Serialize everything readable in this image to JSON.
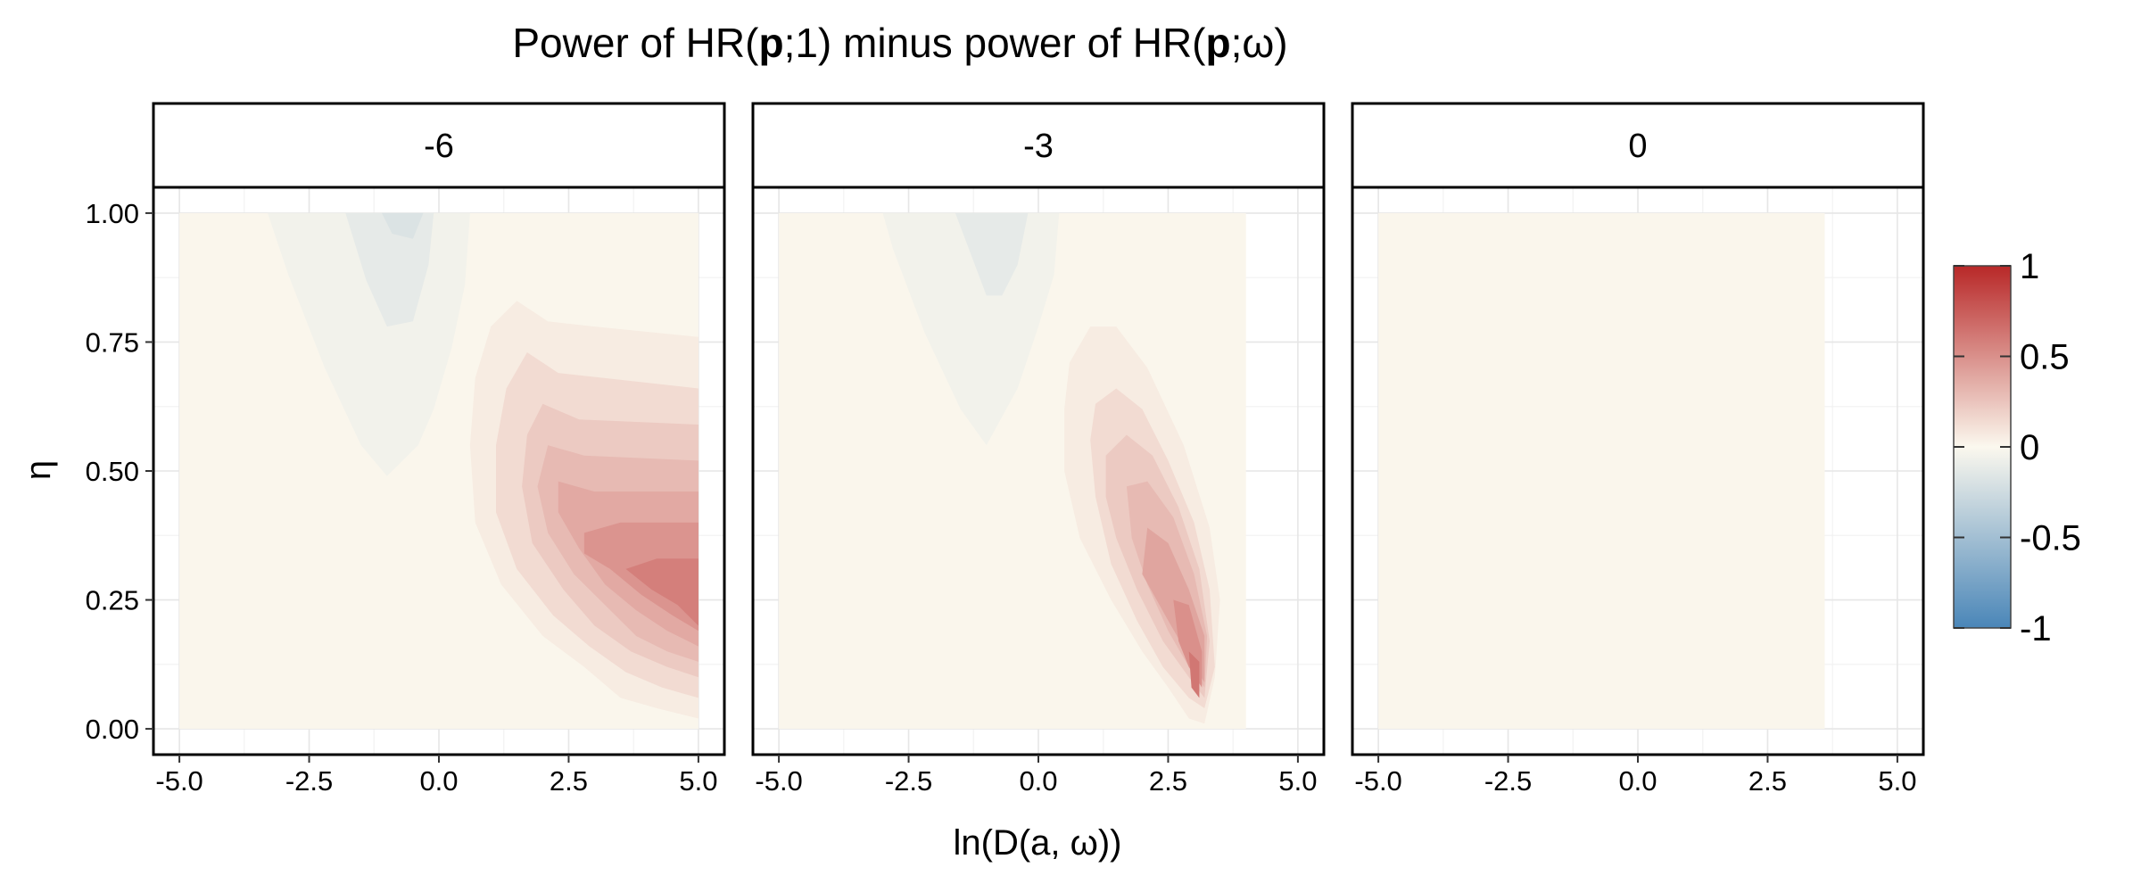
{
  "chart_data": {
    "type": "heatmap",
    "title": {
      "prefix": "Power of HR(",
      "bold1": "p",
      "mid": ";1) minus power of HR(",
      "bold2": "p",
      "suffix": ";ω)"
    },
    "xlabel": "ln(D(a, ω))",
    "ylabel": "η",
    "xlim": [
      -5.5,
      5.5
    ],
    "ylim": [
      -0.05,
      1.05
    ],
    "x_ticks": [
      "-5.0",
      "-2.5",
      "0.0",
      "2.5",
      "5.0"
    ],
    "x_tick_values": [
      -5,
      -2.5,
      0,
      2.5,
      5
    ],
    "y_ticks": [
      "0.00",
      "0.25",
      "0.50",
      "0.75",
      "1.00"
    ],
    "y_tick_values": [
      0,
      0.25,
      0.5,
      0.75,
      1
    ],
    "grid": true,
    "legend": {
      "position": "right",
      "min": -1,
      "max": 1,
      "ticks": [
        "1",
        "0.5",
        "0",
        "-0.5",
        "-1"
      ],
      "tick_values": [
        1,
        0.5,
        0,
        -0.5,
        -1
      ],
      "colors": {
        "low": "#4a86b8",
        "mid": "#fbf8ee",
        "high": "#b82828"
      }
    },
    "facets": [
      {
        "label": "-6",
        "x_extent": [
          -5,
          5
        ],
        "regions": [
          {
            "value": -0.05,
            "points": [
              [
                -3.3,
                1.0
              ],
              [
                -0.6,
                1.0
              ],
              [
                0.6,
                1.0
              ],
              [
                0.5,
                0.86
              ],
              [
                0.25,
                0.74
              ],
              [
                -0.1,
                0.62
              ],
              [
                -0.4,
                0.55
              ],
              [
                -1.0,
                0.49
              ],
              [
                -1.5,
                0.55
              ],
              [
                -2.2,
                0.7
              ],
              [
                -2.9,
                0.88
              ]
            ]
          },
          {
            "value": -0.12,
            "points": [
              [
                -1.8,
                1.0
              ],
              [
                -0.1,
                1.0
              ],
              [
                -0.2,
                0.9
              ],
              [
                -0.5,
                0.79
              ],
              [
                -1.0,
                0.78
              ],
              [
                -1.4,
                0.87
              ]
            ]
          },
          {
            "value": -0.18,
            "points": [
              [
                -1.1,
                1.0
              ],
              [
                -0.3,
                1.0
              ],
              [
                -0.5,
                0.95
              ],
              [
                -0.9,
                0.96
              ]
            ]
          },
          {
            "value": 0.06,
            "points": [
              [
                1.5,
                0.83
              ],
              [
                2.1,
                0.79
              ],
              [
                3.0,
                0.78
              ],
              [
                5.0,
                0.76
              ],
              [
                5.0,
                0.02
              ],
              [
                4.2,
                0.04
              ],
              [
                3.5,
                0.06
              ],
              [
                2.8,
                0.12
              ],
              [
                2.0,
                0.18
              ],
              [
                1.2,
                0.28
              ],
              [
                0.7,
                0.4
              ],
              [
                0.6,
                0.55
              ],
              [
                0.7,
                0.68
              ],
              [
                1.0,
                0.78
              ]
            ]
          },
          {
            "value": 0.14,
            "points": [
              [
                1.7,
                0.73
              ],
              [
                2.3,
                0.69
              ],
              [
                3.2,
                0.68
              ],
              [
                5.0,
                0.66
              ],
              [
                5.0,
                0.06
              ],
              [
                4.3,
                0.08
              ],
              [
                3.6,
                0.11
              ],
              [
                2.9,
                0.16
              ],
              [
                2.2,
                0.22
              ],
              [
                1.5,
                0.31
              ],
              [
                1.1,
                0.42
              ],
              [
                1.1,
                0.55
              ],
              [
                1.3,
                0.66
              ]
            ]
          },
          {
            "value": 0.22,
            "points": [
              [
                2.0,
                0.63
              ],
              [
                2.7,
                0.6
              ],
              [
                5.0,
                0.59
              ],
              [
                5.0,
                0.1
              ],
              [
                4.4,
                0.12
              ],
              [
                3.7,
                0.15
              ],
              [
                3.0,
                0.2
              ],
              [
                2.4,
                0.27
              ],
              [
                1.8,
                0.36
              ],
              [
                1.6,
                0.47
              ],
              [
                1.7,
                0.57
              ]
            ]
          },
          {
            "value": 0.3,
            "points": [
              [
                2.1,
                0.55
              ],
              [
                2.8,
                0.53
              ],
              [
                5.0,
                0.52
              ],
              [
                5.0,
                0.13
              ],
              [
                4.4,
                0.15
              ],
              [
                3.8,
                0.18
              ],
              [
                3.2,
                0.24
              ],
              [
                2.6,
                0.3
              ],
              [
                2.1,
                0.38
              ],
              [
                1.9,
                0.47
              ]
            ]
          },
          {
            "value": 0.38,
            "points": [
              [
                2.3,
                0.48
              ],
              [
                3.0,
                0.46
              ],
              [
                5.0,
                0.46
              ],
              [
                5.0,
                0.16
              ],
              [
                4.4,
                0.19
              ],
              [
                3.8,
                0.23
              ],
              [
                3.2,
                0.28
              ],
              [
                2.7,
                0.35
              ],
              [
                2.3,
                0.42
              ]
            ]
          },
          {
            "value": 0.48,
            "points": [
              [
                2.8,
                0.38
              ],
              [
                3.5,
                0.4
              ],
              [
                5.0,
                0.4
              ],
              [
                5.0,
                0.19
              ],
              [
                4.5,
                0.22
              ],
              [
                3.9,
                0.26
              ],
              [
                3.3,
                0.31
              ],
              [
                2.8,
                0.34
              ]
            ]
          },
          {
            "value": 0.58,
            "points": [
              [
                3.6,
                0.31
              ],
              [
                4.2,
                0.33
              ],
              [
                5.0,
                0.33
              ],
              [
                5.0,
                0.2
              ],
              [
                4.6,
                0.24
              ],
              [
                4.1,
                0.27
              ]
            ]
          }
        ]
      },
      {
        "label": "-3",
        "x_extent": [
          -5,
          4
        ],
        "regions": [
          {
            "value": -0.05,
            "points": [
              [
                -3.0,
                1.0
              ],
              [
                -1.0,
                1.0
              ],
              [
                0.4,
                1.0
              ],
              [
                0.3,
                0.88
              ],
              [
                0.0,
                0.78
              ],
              [
                -0.4,
                0.66
              ],
              [
                -1.0,
                0.55
              ],
              [
                -1.5,
                0.62
              ],
              [
                -2.2,
                0.77
              ],
              [
                -2.8,
                0.93
              ]
            ]
          },
          {
            "value": -0.12,
            "points": [
              [
                -1.6,
                1.0
              ],
              [
                -0.2,
                1.0
              ],
              [
                -0.4,
                0.9
              ],
              [
                -0.7,
                0.84
              ],
              [
                -1.0,
                0.84
              ],
              [
                -1.3,
                0.92
              ]
            ]
          },
          {
            "value": 0.06,
            "points": [
              [
                0.6,
                0.71
              ],
              [
                1.0,
                0.78
              ],
              [
                1.5,
                0.78
              ],
              [
                2.1,
                0.7
              ],
              [
                2.8,
                0.55
              ],
              [
                3.3,
                0.39
              ],
              [
                3.5,
                0.25
              ],
              [
                3.4,
                0.1
              ],
              [
                3.2,
                0.01
              ],
              [
                2.9,
                0.02
              ],
              [
                2.5,
                0.08
              ],
              [
                2.0,
                0.15
              ],
              [
                1.4,
                0.25
              ],
              [
                0.8,
                0.37
              ],
              [
                0.5,
                0.5
              ],
              [
                0.5,
                0.62
              ]
            ]
          },
          {
            "value": 0.14,
            "points": [
              [
                1.1,
                0.63
              ],
              [
                1.5,
                0.66
              ],
              [
                2.0,
                0.62
              ],
              [
                2.5,
                0.52
              ],
              [
                3.0,
                0.4
              ],
              [
                3.3,
                0.27
              ],
              [
                3.4,
                0.12
              ],
              [
                3.2,
                0.04
              ],
              [
                2.9,
                0.06
              ],
              [
                2.4,
                0.12
              ],
              [
                1.9,
                0.21
              ],
              [
                1.4,
                0.32
              ],
              [
                1.1,
                0.45
              ],
              [
                1.0,
                0.56
              ]
            ]
          },
          {
            "value": 0.22,
            "points": [
              [
                1.3,
                0.53
              ],
              [
                1.7,
                0.57
              ],
              [
                2.2,
                0.53
              ],
              [
                2.7,
                0.43
              ],
              [
                3.1,
                0.31
              ],
              [
                3.3,
                0.17
              ],
              [
                3.2,
                0.06
              ],
              [
                2.9,
                0.1
              ],
              [
                2.4,
                0.17
              ],
              [
                1.9,
                0.27
              ],
              [
                1.5,
                0.37
              ],
              [
                1.3,
                0.45
              ]
            ]
          },
          {
            "value": 0.3,
            "points": [
              [
                1.7,
                0.47
              ],
              [
                2.1,
                0.48
              ],
              [
                2.6,
                0.41
              ],
              [
                3.0,
                0.3
              ],
              [
                3.25,
                0.18
              ],
              [
                3.2,
                0.08
              ],
              [
                2.9,
                0.12
              ],
              [
                2.5,
                0.19
              ],
              [
                2.1,
                0.28
              ],
              [
                1.8,
                0.37
              ]
            ]
          },
          {
            "value": 0.4,
            "points": [
              [
                2.1,
                0.39
              ],
              [
                2.5,
                0.36
              ],
              [
                2.9,
                0.27
              ],
              [
                3.2,
                0.18
              ],
              [
                3.2,
                0.09
              ],
              [
                2.9,
                0.14
              ],
              [
                2.5,
                0.21
              ],
              [
                2.0,
                0.3
              ]
            ]
          },
          {
            "value": 0.5,
            "points": [
              [
                2.6,
                0.25
              ],
              [
                2.9,
                0.24
              ],
              [
                3.15,
                0.15
              ],
              [
                3.15,
                0.08
              ],
              [
                2.9,
                0.12
              ],
              [
                2.7,
                0.17
              ]
            ]
          },
          {
            "value": 0.62,
            "points": [
              [
                2.9,
                0.15
              ],
              [
                3.1,
                0.13
              ],
              [
                3.1,
                0.06
              ],
              [
                2.95,
                0.08
              ]
            ]
          }
        ]
      },
      {
        "label": "0",
        "x_extent": [
          -5,
          3.6
        ],
        "regions": []
      }
    ]
  }
}
